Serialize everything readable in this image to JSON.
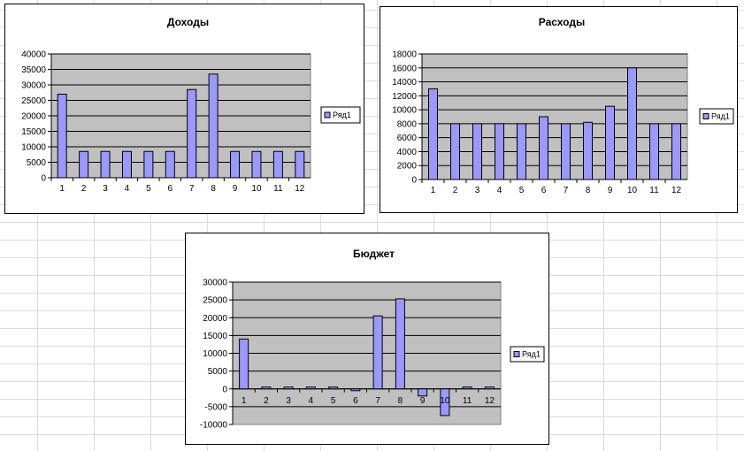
{
  "colors": {
    "plot_background": "#c0c0c0",
    "bar_fill": "#9999ff",
    "bar_stroke": "#000000",
    "gridline": "#000000",
    "sheet_grid": "#dcdcdc"
  },
  "chart_data": [
    {
      "type": "bar",
      "title": "Доходы",
      "categories": [
        "1",
        "2",
        "3",
        "4",
        "5",
        "6",
        "7",
        "8",
        "9",
        "10",
        "11",
        "12"
      ],
      "series": [
        {
          "name": "Ряд1",
          "values": [
            27000,
            8500,
            8500,
            8500,
            8500,
            8500,
            28500,
            33500,
            8500,
            8500,
            8500,
            8500
          ]
        }
      ],
      "ylim": [
        0,
        40000
      ],
      "yticks": [
        0,
        5000,
        10000,
        15000,
        20000,
        25000,
        30000,
        35000,
        40000
      ],
      "grid": true,
      "legend": "right"
    },
    {
      "type": "bar",
      "title": "Расходы",
      "categories": [
        "1",
        "2",
        "3",
        "4",
        "5",
        "6",
        "7",
        "8",
        "9",
        "10",
        "11",
        "12"
      ],
      "series": [
        {
          "name": "Ряд1",
          "values": [
            13000,
            8000,
            8000,
            8000,
            8000,
            9000,
            8000,
            8200,
            10500,
            16000,
            8000,
            8000
          ]
        }
      ],
      "ylim": [
        0,
        18000
      ],
      "yticks": [
        0,
        2000,
        4000,
        6000,
        8000,
        10000,
        12000,
        14000,
        16000,
        18000
      ],
      "grid": true,
      "legend": "right"
    },
    {
      "type": "bar",
      "title": "Бюджет",
      "categories": [
        "1",
        "2",
        "3",
        "4",
        "5",
        "6",
        "7",
        "8",
        "9",
        "10",
        "11",
        "12"
      ],
      "series": [
        {
          "name": "Ряд1",
          "values": [
            14000,
            500,
            500,
            500,
            500,
            -500,
            20500,
            25300,
            -2000,
            -7500,
            500,
            500
          ]
        }
      ],
      "ylim": [
        -10000,
        30000
      ],
      "yticks": [
        -10000,
        -5000,
        0,
        5000,
        10000,
        15000,
        20000,
        25000,
        30000
      ],
      "grid": true,
      "legend": "right"
    }
  ]
}
